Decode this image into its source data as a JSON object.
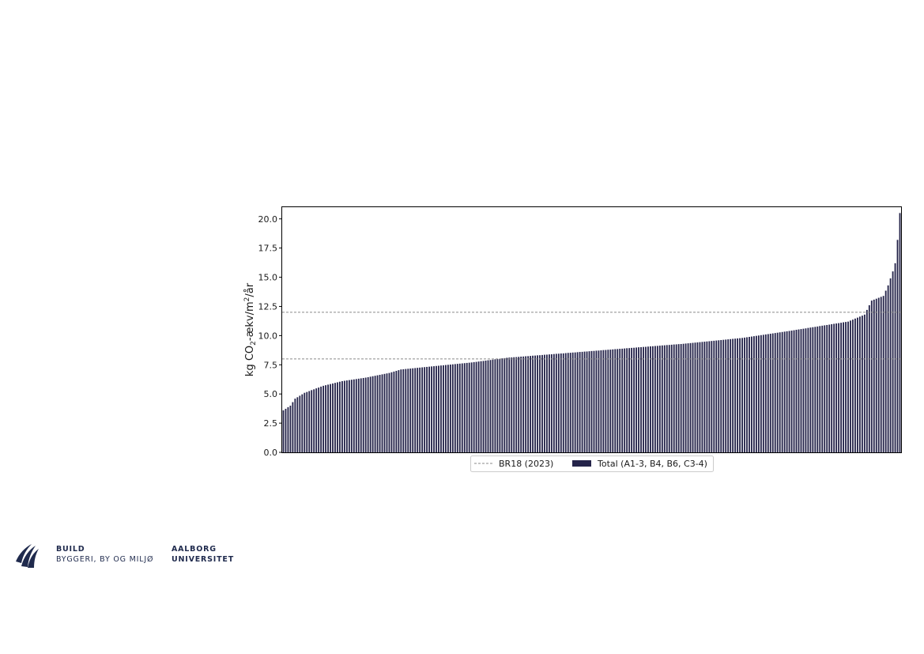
{
  "colors": {
    "bar": "#25244a",
    "ref_line": "#8a8a8a",
    "axis": "#000000"
  },
  "chart_data": {
    "type": "bar",
    "title": "",
    "xlabel": "",
    "ylabel": "kg CO",
    "ylabel_sub": "2",
    "ylabel_mid": "-ækv/m",
    "ylabel_sup": "2",
    "ylabel_end": "/år",
    "ylim": [
      0,
      21
    ],
    "yticks": [
      "0.0",
      "2.5",
      "5.0",
      "7.5",
      "10.0",
      "12.5",
      "15.0",
      "17.5",
      "20.0"
    ],
    "bar_count": 263,
    "sorted_ascending": true,
    "value_profile": [
      [
        0,
        3.6
      ],
      [
        3,
        4.0
      ],
      [
        5,
        4.6
      ],
      [
        9,
        5.1
      ],
      [
        13,
        5.4
      ],
      [
        17,
        5.7
      ],
      [
        25,
        6.1
      ],
      [
        35,
        6.4
      ],
      [
        45,
        6.8
      ],
      [
        50,
        7.1
      ],
      [
        65,
        7.4
      ],
      [
        80,
        7.7
      ],
      [
        95,
        8.1
      ],
      [
        120,
        8.5
      ],
      [
        145,
        8.9
      ],
      [
        170,
        9.3
      ],
      [
        195,
        9.8
      ],
      [
        215,
        10.4
      ],
      [
        240,
        11.2
      ],
      [
        247,
        11.8
      ],
      [
        250,
        13.0
      ],
      [
        255,
        13.4
      ],
      [
        257,
        14.3
      ],
      [
        259,
        15.5
      ],
      [
        260,
        16.2
      ],
      [
        261,
        18.2
      ],
      [
        262,
        20.5
      ]
    ],
    "reference_lines": [
      {
        "name": "BR18 (2023)",
        "value": 12.0
      },
      {
        "name": "BR18 (2023)",
        "value": 8.0
      }
    ],
    "legend": [
      "BR18 (2023)",
      "Total (A1-3, B4, B6, C3-4)"
    ],
    "legend_position": "lower-center",
    "grid": false
  },
  "logo": {
    "build_line1": "BUILD",
    "build_line2": "BYGGERI, BY OG MILJØ",
    "aau_line1": "AALBORG",
    "aau_line2": "UNIVERSITET"
  }
}
